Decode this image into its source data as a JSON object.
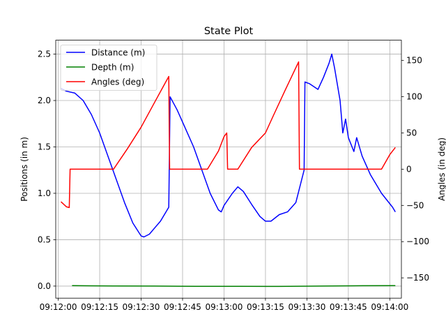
{
  "chart_data": {
    "type": "line",
    "title": "State Plot",
    "ylabel": "Positions (in m)",
    "y2label": "Angles (in deg)",
    "xlim": [
      "09:12:00",
      "09:14:00"
    ],
    "xticks": [
      "09:12:00",
      "09:12:15",
      "09:12:30",
      "09:12:45",
      "09:13:00",
      "09:13:15",
      "09:13:30",
      "09:13:45",
      "09:14:00"
    ],
    "ylim": [
      -0.13,
      2.65
    ],
    "yticks": [
      "0.0",
      "0.5",
      "1.0",
      "1.5",
      "2.0",
      "2.5"
    ],
    "y2lim": [
      -178,
      178
    ],
    "y2ticks": [
      "-150",
      "-100",
      "-50",
      "0",
      "50",
      "100",
      "150"
    ],
    "grid": true,
    "legend_position": "top-left",
    "series": [
      {
        "name": "Distance (m)",
        "axis": "left",
        "color": "#0000ff",
        "points": [
          [
            "09:12:01",
            2.13
          ],
          [
            "09:12:03",
            2.1
          ],
          [
            "09:12:06",
            2.08
          ],
          [
            "09:12:09",
            2.0
          ],
          [
            "09:12:12",
            1.85
          ],
          [
            "09:12:15",
            1.65
          ],
          [
            "09:12:18",
            1.4
          ],
          [
            "09:12:21",
            1.15
          ],
          [
            "09:12:24",
            0.9
          ],
          [
            "09:12:27",
            0.68
          ],
          [
            "09:12:30",
            0.54
          ],
          [
            "09:12:31",
            0.53
          ],
          [
            "09:12:33",
            0.56
          ],
          [
            "09:12:35",
            0.63
          ],
          [
            "09:12:37",
            0.7
          ],
          [
            "09:12:39",
            0.8
          ],
          [
            "09:12:40",
            0.85
          ],
          [
            "09:12:40.5",
            2.04
          ],
          [
            "09:12:43",
            1.9
          ],
          [
            "09:12:46",
            1.7
          ],
          [
            "09:12:49",
            1.5
          ],
          [
            "09:12:52",
            1.25
          ],
          [
            "09:12:55",
            1.0
          ],
          [
            "09:12:58",
            0.82
          ],
          [
            "09:12:59",
            0.8
          ],
          [
            "09:13:00",
            0.87
          ],
          [
            "09:13:03",
            1.0
          ],
          [
            "09:13:05",
            1.07
          ],
          [
            "09:13:07",
            1.02
          ],
          [
            "09:13:10",
            0.88
          ],
          [
            "09:13:13",
            0.75
          ],
          [
            "09:13:15",
            0.7
          ],
          [
            "09:13:17",
            0.7
          ],
          [
            "09:13:20",
            0.77
          ],
          [
            "09:13:23",
            0.8
          ],
          [
            "09:13:26",
            0.9
          ],
          [
            "09:13:29",
            1.25
          ],
          [
            "09:13:29.3",
            2.2
          ],
          [
            "09:13:31",
            2.18
          ],
          [
            "09:13:34",
            2.12
          ],
          [
            "09:13:36",
            2.25
          ],
          [
            "09:13:38",
            2.4
          ],
          [
            "09:13:39",
            2.5
          ],
          [
            "09:13:40",
            2.35
          ],
          [
            "09:13:42",
            2.0
          ],
          [
            "09:13:43",
            1.65
          ],
          [
            "09:13:44",
            1.8
          ],
          [
            "09:13:45",
            1.6
          ],
          [
            "09:13:47",
            1.45
          ],
          [
            "09:13:48",
            1.6
          ],
          [
            "09:13:50",
            1.4
          ],
          [
            "09:13:53",
            1.2
          ],
          [
            "09:13:57",
            1.0
          ],
          [
            "09:14:01",
            0.85
          ],
          [
            "09:14:02",
            0.8
          ]
        ]
      },
      {
        "name": "Depth (m)",
        "axis": "left",
        "color": "#008000",
        "points": [
          [
            "09:12:05",
            0.005
          ],
          [
            "09:12:20",
            0.002
          ],
          [
            "09:12:35",
            0.0
          ],
          [
            "09:12:50",
            -0.003
          ],
          [
            "09:13:05",
            -0.002
          ],
          [
            "09:13:20",
            -0.004
          ],
          [
            "09:13:35",
            0.0
          ],
          [
            "09:13:50",
            0.004
          ],
          [
            "09:14:02",
            0.005
          ]
        ]
      },
      {
        "name": "Angles (deg)",
        "axis": "right",
        "color": "#ff0000",
        "points": [
          [
            "09:12:01",
            -45
          ],
          [
            "09:12:03",
            -52
          ],
          [
            "09:12:04",
            -53
          ],
          [
            "09:12:04.3",
            0
          ],
          [
            "09:12:20",
            0
          ],
          [
            "09:12:25",
            28
          ],
          [
            "09:12:30",
            58
          ],
          [
            "09:12:35",
            93
          ],
          [
            "09:12:40",
            128
          ],
          [
            "09:12:40.3",
            0
          ],
          [
            "09:12:54",
            0
          ],
          [
            "09:12:58",
            25
          ],
          [
            "09:13:00",
            45
          ],
          [
            "09:13:01",
            50
          ],
          [
            "09:13:01.3",
            0
          ],
          [
            "09:13:05",
            0
          ],
          [
            "09:13:10",
            30
          ],
          [
            "09:13:15",
            50
          ],
          [
            "09:13:18",
            75
          ],
          [
            "09:13:22",
            108
          ],
          [
            "09:13:27",
            148
          ],
          [
            "09:13:27.3",
            0
          ],
          [
            "09:13:57",
            0
          ],
          [
            "09:14:00",
            20
          ],
          [
            "09:14:02",
            30
          ]
        ]
      }
    ]
  }
}
